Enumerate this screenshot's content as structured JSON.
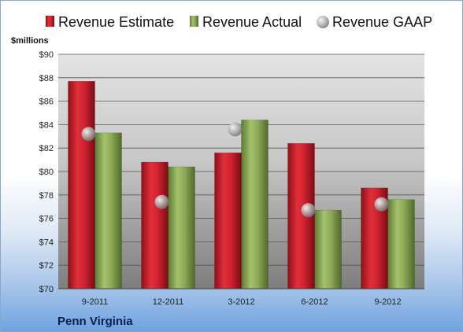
{
  "chart_data": {
    "type": "bar",
    "unit_label": "$millions",
    "company": "Penn Virginia",
    "categories": [
      "9-2011",
      "12-2011",
      "3-2012",
      "6-2012",
      "9-2012"
    ],
    "y_ticks": [
      "$70",
      "$72",
      "$74",
      "$76",
      "$78",
      "$80",
      "$82",
      "$84",
      "$86",
      "$88",
      "$90"
    ],
    "ylim": [
      70,
      90
    ],
    "grid": true,
    "legend_position": "top",
    "series": [
      {
        "name": "Revenue Estimate",
        "kind": "bar",
        "color": "#cc1f2a",
        "values": [
          87.7,
          80.8,
          81.6,
          82.4,
          78.6
        ]
      },
      {
        "name": "Revenue Actual",
        "kind": "bar",
        "color": "#8fac5a",
        "values": [
          83.3,
          80.4,
          84.4,
          76.7,
          77.6
        ]
      },
      {
        "name": "Revenue GAAP",
        "kind": "marker",
        "color": "#b9b9b9",
        "values": [
          83.2,
          77.4,
          83.6,
          76.7,
          77.2
        ]
      }
    ]
  }
}
